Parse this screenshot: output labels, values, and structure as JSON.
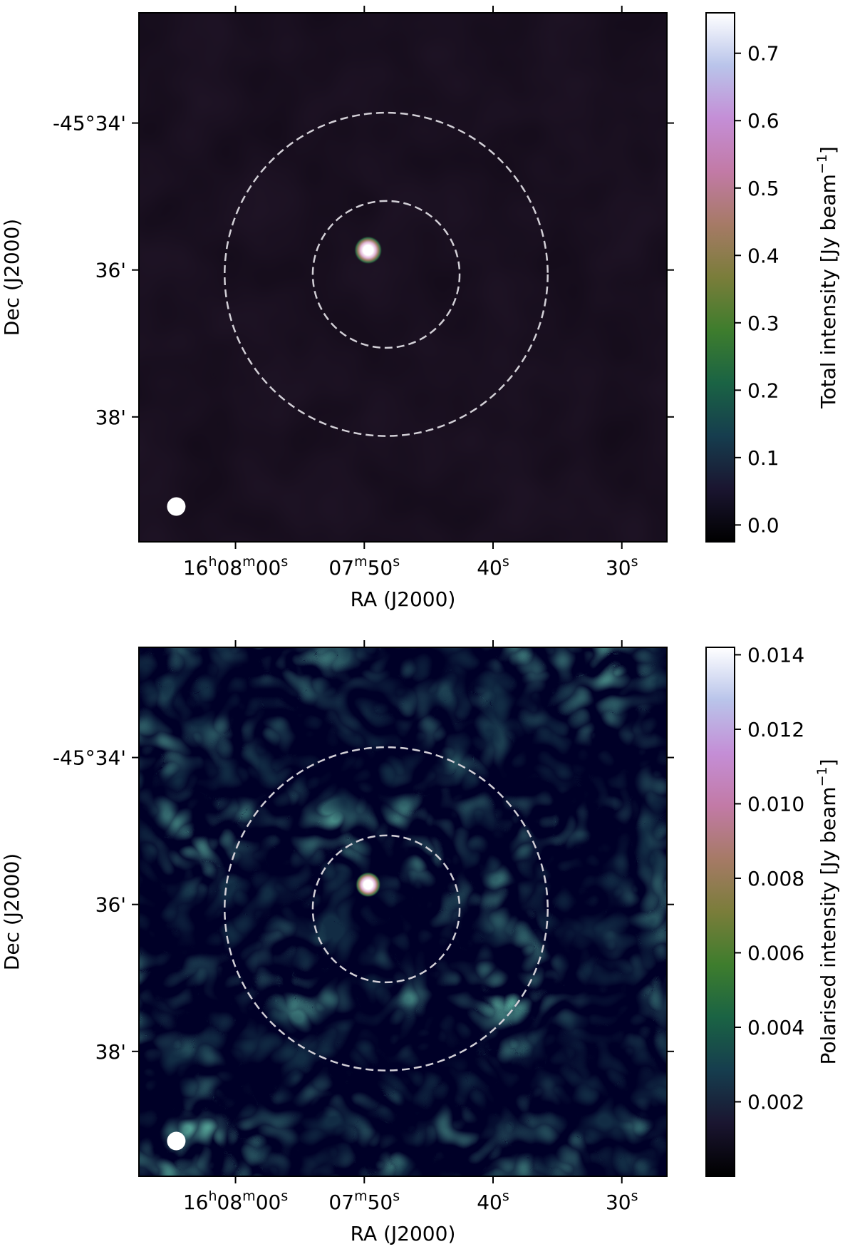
{
  "chart_data": [
    {
      "type": "heatmap",
      "title": "",
      "xlabel": "RA (J2000)",
      "ylabel": "Dec (J2000)",
      "colorbar_label": "Total intensity [Jy beam",
      "colorbar_unit_exponent": "−1",
      "colorbar_close": "]",
      "colorbar_range": [
        -0.025,
        0.76
      ],
      "colorbar_ticks": [
        "0.0",
        "0.1",
        "0.2",
        "0.3",
        "0.4",
        "0.5",
        "0.6",
        "0.7"
      ],
      "colorbar_tick_values": [
        0.0,
        0.1,
        0.2,
        0.3,
        0.4,
        0.5,
        0.6,
        0.7
      ],
      "colormap": "cubehelix",
      "x_ticks": [
        {
          "main": "16",
          "parts": [
            [
              "16",
              ""
            ],
            [
              "h",
              "sup"
            ],
            [
              "08",
              ""
            ],
            [
              "m",
              "sup"
            ],
            [
              "00",
              ""
            ],
            [
              "s",
              "sup"
            ]
          ],
          "ra_seconds_offset": 0
        },
        {
          "main": "07m50s",
          "parts": [
            [
              "07",
              ""
            ],
            [
              "m",
              "sup"
            ],
            [
              "50",
              ""
            ],
            [
              "s",
              "sup"
            ]
          ],
          "ra_seconds_offset": -10
        },
        {
          "main": "40s",
          "parts": [
            [
              "40",
              ""
            ],
            [
              "s",
              "sup"
            ]
          ],
          "ra_seconds_offset": -20
        },
        {
          "main": "30s",
          "parts": [
            [
              "30",
              ""
            ],
            [
              "s",
              "sup"
            ]
          ],
          "ra_seconds_offset": -30
        }
      ],
      "x_range_ra_seconds_offset": [
        7.5,
        -33.5
      ],
      "y_ticks": [
        "-45°34'",
        "36'",
        "38'"
      ],
      "y_tick_values_arcmin": [
        -34,
        -36,
        -38
      ],
      "y_range_arcmin": [
        -32.5,
        -39.7
      ],
      "source": {
        "ra_seconds_offset": -10.3,
        "dec_arcmin": -35.73,
        "peak": 0.76
      },
      "circles": [
        {
          "style": "dashed",
          "center_ra_seconds_offset": -11.7,
          "center_dec_arcmin": -36.06,
          "radius_arcmin": 1.0
        },
        {
          "style": "dashed",
          "center_ra_seconds_offset": -11.7,
          "center_dec_arcmin": -36.06,
          "radius_arcmin": 2.2
        }
      ],
      "beam": {
        "ra_seconds_offset": 4.6,
        "dec_arcmin": -39.22
      }
    },
    {
      "type": "heatmap",
      "title": "",
      "xlabel": "RA (J2000)",
      "ylabel": "Dec (J2000)",
      "colorbar_label": "Polarised intensity [Jy beam",
      "colorbar_unit_exponent": "−1",
      "colorbar_close": "]",
      "colorbar_range": [
        0.0,
        0.0142
      ],
      "colorbar_ticks": [
        "0.002",
        "0.004",
        "0.006",
        "0.008",
        "0.010",
        "0.012",
        "0.014"
      ],
      "colorbar_tick_values": [
        0.002,
        0.004,
        0.006,
        0.008,
        0.01,
        0.012,
        0.014
      ],
      "colormap": "cubehelix",
      "x_ticks": [
        {
          "main": "16",
          "parts": [
            [
              "16",
              ""
            ],
            [
              "h",
              "sup"
            ],
            [
              "08",
              ""
            ],
            [
              "m",
              "sup"
            ],
            [
              "00",
              ""
            ],
            [
              "s",
              "sup"
            ]
          ],
          "ra_seconds_offset": 0
        },
        {
          "main": "07m50s",
          "parts": [
            [
              "07",
              ""
            ],
            [
              "m",
              "sup"
            ],
            [
              "50",
              ""
            ],
            [
              "s",
              "sup"
            ]
          ],
          "ra_seconds_offset": -10
        },
        {
          "main": "40s",
          "parts": [
            [
              "40",
              ""
            ],
            [
              "s",
              "sup"
            ]
          ],
          "ra_seconds_offset": -20
        },
        {
          "main": "30s",
          "parts": [
            [
              "30",
              ""
            ],
            [
              "s",
              "sup"
            ]
          ],
          "ra_seconds_offset": -30
        }
      ],
      "x_range_ra_seconds_offset": [
        7.5,
        -33.5
      ],
      "y_ticks": [
        "-45°34'",
        "36'",
        "38'"
      ],
      "y_tick_values_arcmin": [
        -34,
        -36,
        -38
      ],
      "y_range_arcmin": [
        -32.5,
        -39.7
      ],
      "source": {
        "ra_seconds_offset": -10.3,
        "dec_arcmin": -35.73,
        "peak": 0.0142
      },
      "circles": [
        {
          "style": "dashed",
          "center_ra_seconds_offset": -11.7,
          "center_dec_arcmin": -36.06,
          "radius_arcmin": 1.0
        },
        {
          "style": "dashed",
          "center_ra_seconds_offset": -11.7,
          "center_dec_arcmin": -36.06,
          "radius_arcmin": 2.2
        }
      ],
      "beam": {
        "ra_seconds_offset": 4.6,
        "dec_arcmin": -39.22
      }
    }
  ]
}
